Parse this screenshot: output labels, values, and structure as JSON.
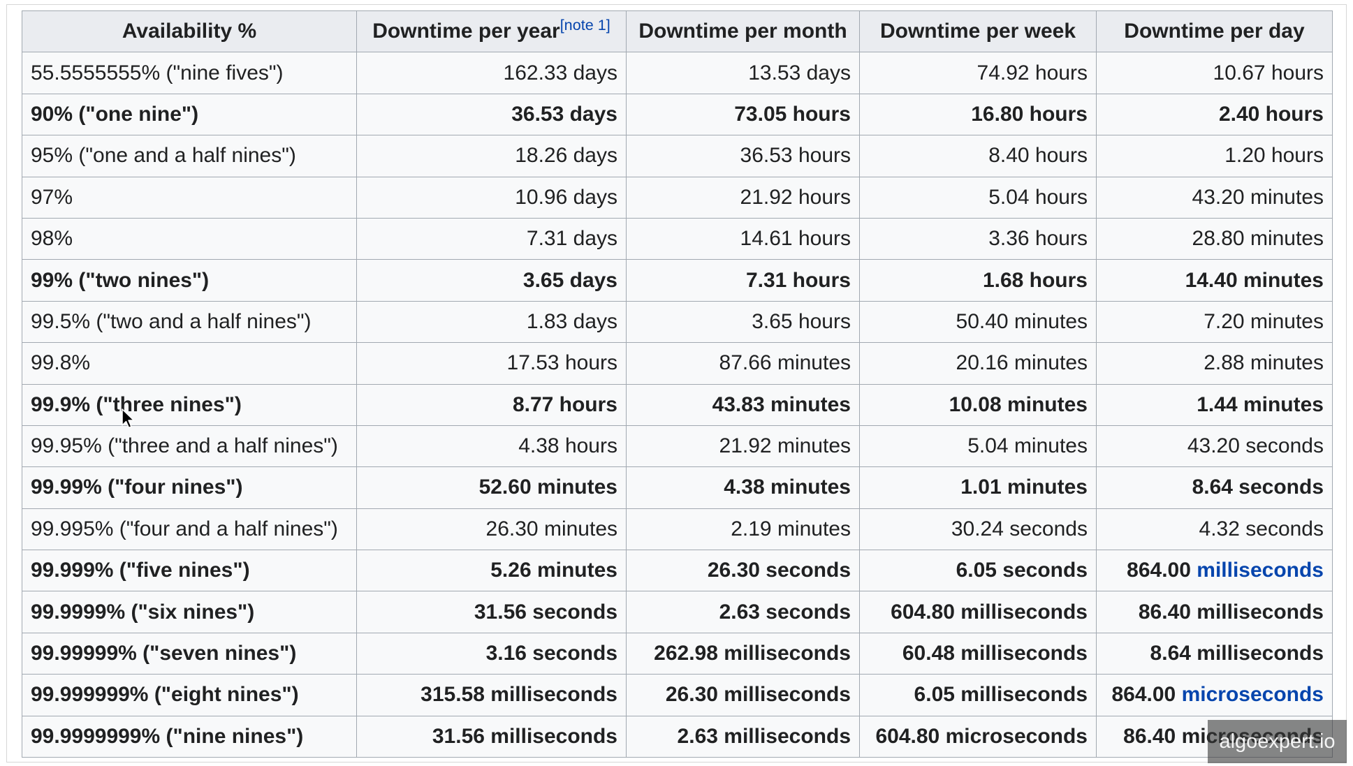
{
  "colors": {
    "header_bg": "#eaecf0",
    "row_bg": "#f8f9fa",
    "border": "#a2a9b1",
    "text": "#202122",
    "link": "#0645ad"
  },
  "table": {
    "headers": {
      "availability": "Availability %",
      "year": "Downtime per year",
      "year_note": "[note 1]",
      "month": "Downtime per month",
      "week": "Downtime per week",
      "day": "Downtime per day"
    },
    "rows": [
      {
        "bold": false,
        "cells": [
          "55.5555555% (\"nine fives\")",
          "162.33 days",
          "13.53 days",
          "74.92 hours",
          "10.67 hours"
        ]
      },
      {
        "bold": true,
        "cells": [
          "90% (\"one nine\")",
          "36.53 days",
          "73.05 hours",
          "16.80 hours",
          "2.40 hours"
        ]
      },
      {
        "bold": false,
        "cells": [
          "95% (\"one and a half nines\")",
          "18.26 days",
          "36.53 hours",
          "8.40 hours",
          "1.20 hours"
        ]
      },
      {
        "bold": false,
        "cells": [
          "97%",
          "10.96 days",
          "21.92 hours",
          "5.04 hours",
          "43.20 minutes"
        ]
      },
      {
        "bold": false,
        "cells": [
          "98%",
          "7.31 days",
          "14.61 hours",
          "3.36 hours",
          "28.80 minutes"
        ]
      },
      {
        "bold": true,
        "cells": [
          "99% (\"two nines\")",
          "3.65 days",
          "7.31 hours",
          "1.68 hours",
          "14.40 minutes"
        ]
      },
      {
        "bold": false,
        "cells": [
          "99.5% (\"two and a half nines\")",
          "1.83 days",
          "3.65 hours",
          "50.40 minutes",
          "7.20 minutes"
        ]
      },
      {
        "bold": false,
        "cells": [
          "99.8%",
          "17.53 hours",
          "87.66 minutes",
          "20.16 minutes",
          "2.88 minutes"
        ]
      },
      {
        "bold": true,
        "cells": [
          "99.9% (\"three nines\")",
          "8.77 hours",
          "43.83 minutes",
          "10.08 minutes",
          "1.44 minutes"
        ]
      },
      {
        "bold": false,
        "cells": [
          "99.95% (\"three and a half nines\")",
          "4.38 hours",
          "21.92 minutes",
          "5.04 minutes",
          "43.20 seconds"
        ]
      },
      {
        "bold": true,
        "cells": [
          "99.99% (\"four nines\")",
          "52.60 minutes",
          "4.38 minutes",
          "1.01 minutes",
          "8.64 seconds"
        ]
      },
      {
        "bold": false,
        "cells": [
          "99.995% (\"four and a half nines\")",
          "26.30 minutes",
          "2.19 minutes",
          "30.24 seconds",
          "4.32 seconds"
        ]
      },
      {
        "bold": true,
        "cells": [
          "99.999% (\"five nines\")",
          "5.26 minutes",
          "26.30 seconds",
          "6.05 seconds",
          {
            "text": "864.00",
            "link": "milliseconds"
          }
        ]
      },
      {
        "bold": true,
        "cells": [
          "99.9999% (\"six nines\")",
          "31.56 seconds",
          "2.63 seconds",
          "604.80 milliseconds",
          "86.40 milliseconds"
        ]
      },
      {
        "bold": true,
        "cells": [
          "99.99999% (\"seven nines\")",
          "3.16 seconds",
          "262.98 milliseconds",
          "60.48 milliseconds",
          "8.64 milliseconds"
        ]
      },
      {
        "bold": true,
        "cells": [
          "99.999999% (\"eight nines\")",
          "315.58 milliseconds",
          "26.30 milliseconds",
          "6.05 milliseconds",
          {
            "text": "864.00",
            "link": "microseconds"
          }
        ]
      },
      {
        "bold": true,
        "cells": [
          "99.9999999% (\"nine nines\")",
          "31.56 milliseconds",
          "2.63 milliseconds",
          "604.80 microseconds",
          "86.40 microseconds"
        ]
      }
    ]
  },
  "watermark": "algoexpert.io",
  "cursor": {
    "icon": "arrow-pointer-icon"
  }
}
